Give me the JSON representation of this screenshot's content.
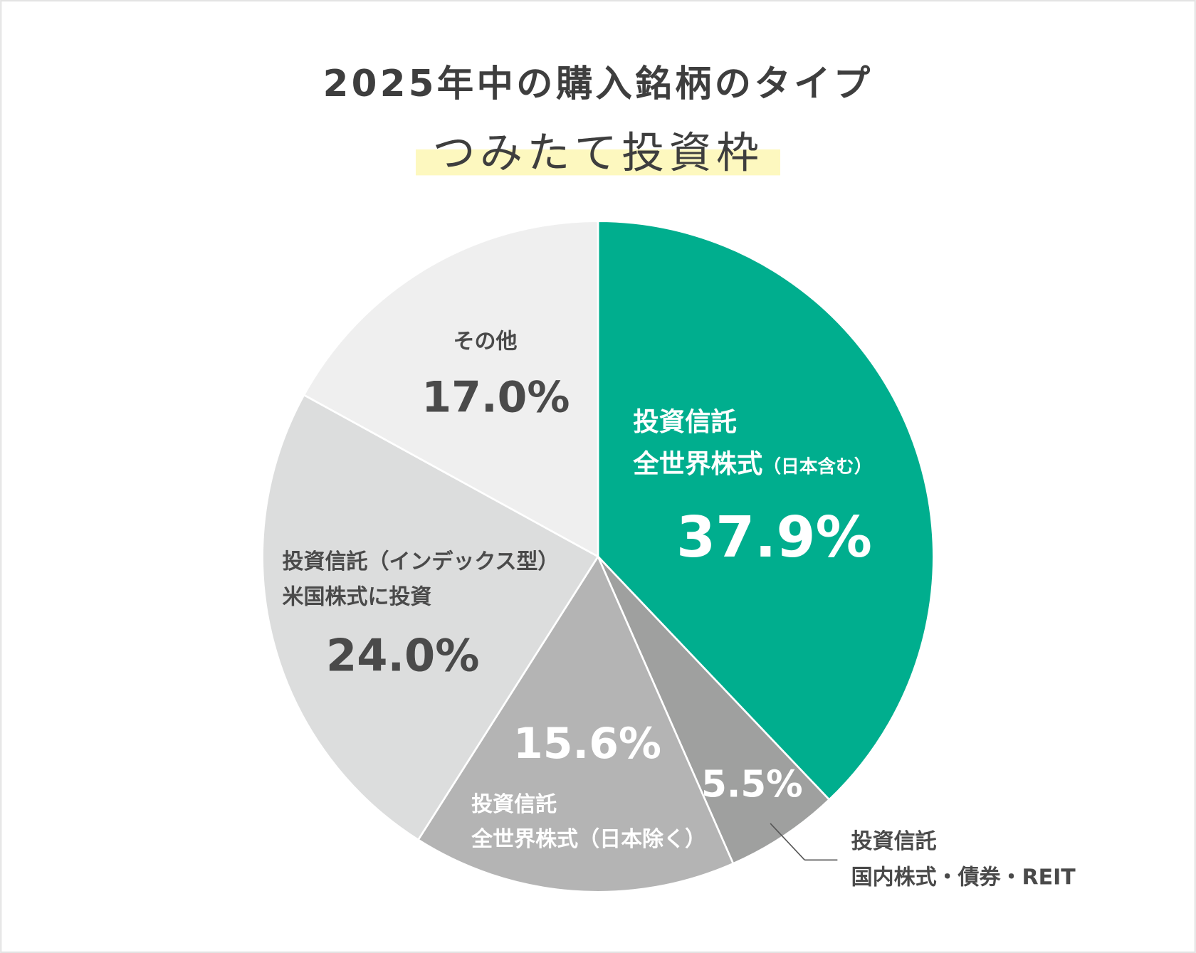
{
  "chart_data": {
    "type": "pie",
    "title": "2025年中の購入銘柄のタイプ",
    "subtitle": "つみたて投資枠",
    "start": "top",
    "direction": "clockwise",
    "slices": [
      {
        "label_lines": [
          "投資信託",
          "全世界株式",
          "（日本含む）"
        ],
        "value": 37.9,
        "display": "37.9%",
        "color": "#00ae8e"
      },
      {
        "label_lines": [
          "投資信託",
          "国内株式・債券・REIT"
        ],
        "value": 5.5,
        "display": "5.5%",
        "color": "#9fa09f"
      },
      {
        "label_lines": [
          "投資信託",
          "全世界株式（日本除く）"
        ],
        "value": 15.6,
        "display": "15.6%",
        "color": "#b4b4b4"
      },
      {
        "label_lines": [
          "投資信託（インデックス型）",
          "米国株式に投資"
        ],
        "value": 24.0,
        "display": "24.0%",
        "color": "#dcdddd"
      },
      {
        "label_lines": [
          "その他"
        ],
        "value": 17.0,
        "display": "17.0%",
        "color": "#efefef"
      }
    ]
  }
}
